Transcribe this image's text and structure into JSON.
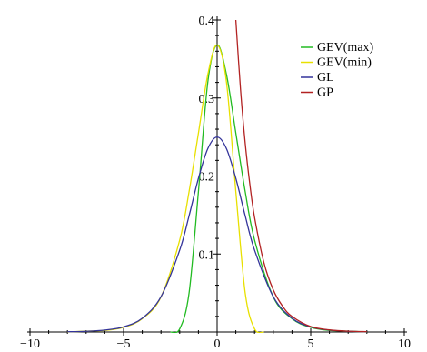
{
  "chart_data": {
    "type": "line",
    "title": "",
    "xlabel": "",
    "ylabel": "",
    "xlim": [
      -10,
      10
    ],
    "ylim": [
      0,
      0.4
    ],
    "x_ticks": [
      -10,
      -5,
      0,
      5,
      10
    ],
    "x_tick_labels": [
      "−10",
      "−5",
      "0",
      "5",
      "10"
    ],
    "y_ticks": [
      0.1,
      0.2,
      0.3,
      0.4
    ],
    "y_tick_labels": [
      "0.1",
      "0.2",
      "0.3",
      "0.4"
    ],
    "grid": false,
    "legend_position": "top-right",
    "series": [
      {
        "name": "GEV(max)",
        "color": "#22bb22",
        "x": [
          -2.5,
          -2.0,
          -1.5,
          -1.0,
          -0.5,
          0.0,
          0.5,
          1.0,
          1.5,
          2.0,
          3.0,
          4.0,
          5.0,
          6.0,
          7.0,
          8.0
        ],
        "y": [
          0.0,
          0.004,
          0.05,
          0.18,
          0.32,
          0.368,
          0.33,
          0.255,
          0.18,
          0.118,
          0.045,
          0.017,
          0.006,
          0.002,
          0.001,
          0.0
        ]
      },
      {
        "name": "GEV(min)",
        "color": "#e8e000",
        "x": [
          -8.0,
          -7.0,
          -6.0,
          -5.0,
          -4.0,
          -3.0,
          -2.0,
          -1.5,
          -1.0,
          -0.5,
          0.0,
          0.5,
          1.0,
          1.5,
          2.0,
          2.5
        ],
        "y": [
          0.0,
          0.001,
          0.002,
          0.006,
          0.017,
          0.045,
          0.118,
          0.18,
          0.255,
          0.33,
          0.368,
          0.32,
          0.18,
          0.05,
          0.004,
          0.0
        ]
      },
      {
        "name": "GL",
        "color": "#33339a",
        "x": [
          -8.0,
          -7.0,
          -6.0,
          -5.0,
          -4.0,
          -3.0,
          -2.0,
          -1.5,
          -1.0,
          -0.5,
          0.0,
          0.5,
          1.0,
          1.5,
          2.0,
          3.0,
          4.0,
          5.0,
          6.0,
          7.0,
          8.0
        ],
        "y": [
          0.0003,
          0.0009,
          0.0025,
          0.0066,
          0.0177,
          0.0452,
          0.105,
          0.149,
          0.197,
          0.235,
          0.25,
          0.235,
          0.197,
          0.149,
          0.105,
          0.0452,
          0.0177,
          0.0066,
          0.0025,
          0.0009,
          0.0003
        ]
      },
      {
        "name": "GP",
        "color": "#b22222",
        "x": [
          1.0,
          1.25,
          1.5,
          1.75,
          2.0,
          2.5,
          3.0,
          3.5,
          4.0,
          5.0,
          6.0,
          7.0,
          8.0
        ],
        "y": [
          0.4,
          0.311,
          0.242,
          0.189,
          0.147,
          0.089,
          0.054,
          0.033,
          0.02,
          0.007,
          0.0027,
          0.001,
          0.0004
        ]
      }
    ]
  }
}
